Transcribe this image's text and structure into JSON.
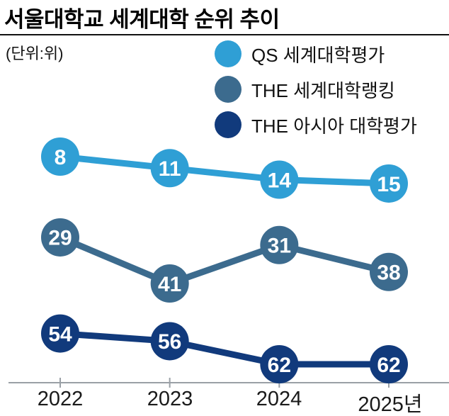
{
  "header": {
    "title": "서울대학교 세계대학 순위 추이",
    "unit_label": "(단위:위)"
  },
  "legend": [
    {
      "label": "QS 세계대학평가",
      "color": "#2f9fd5"
    },
    {
      "label": "THE 세계대학랭킹",
      "color": "#3c6b8e"
    },
    {
      "label": "THE 아시아 대학평가",
      "color": "#113a7c"
    }
  ],
  "chart_data": {
    "type": "line",
    "title": "서울대학교 세계대학 순위 추이",
    "unit": "위",
    "categories": [
      "2022",
      "2023",
      "2024",
      "2025년"
    ],
    "series": [
      {
        "name": "QS 세계대학평가",
        "color": "#2f9fd5",
        "values": [
          8,
          11,
          14,
          15
        ]
      },
      {
        "name": "THE 세계대학랭킹",
        "color": "#3c6b8e",
        "values": [
          29,
          41,
          31,
          38
        ]
      },
      {
        "name": "THE 아시아 대학평가",
        "color": "#113a7c",
        "values": [
          54,
          56,
          62,
          62
        ]
      }
    ],
    "ylim": [
      8,
      62
    ],
    "y_inverted": true,
    "grid": false,
    "legend_position": "top-right",
    "marker": "circle-with-value-label",
    "axis_color": "#9aa0a6",
    "marker_text_color": "#ffffff"
  }
}
